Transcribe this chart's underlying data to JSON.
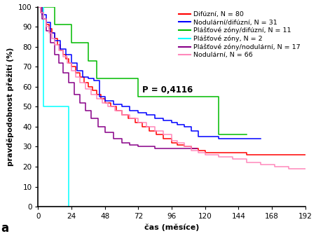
{
  "series": [
    {
      "label": "Difúzní, N = 80",
      "color": "#ff0000",
      "x": [
        0,
        2,
        4,
        6,
        8,
        10,
        12,
        14,
        16,
        18,
        20,
        22,
        24,
        27,
        30,
        33,
        36,
        39,
        42,
        45,
        48,
        52,
        56,
        60,
        65,
        70,
        75,
        80,
        85,
        90,
        96,
        100,
        105,
        110,
        115,
        120,
        125,
        130,
        140,
        150,
        160,
        170,
        180,
        192
      ],
      "y": [
        100,
        97,
        94,
        91,
        89,
        87,
        84,
        81,
        78,
        76,
        74,
        72,
        70,
        67,
        65,
        62,
        60,
        58,
        56,
        54,
        52,
        50,
        48,
        46,
        44,
        42,
        40,
        38,
        36,
        34,
        32,
        31,
        30,
        29,
        28,
        27,
        27,
        27,
        27,
        26,
        26,
        26,
        26,
        26
      ]
    },
    {
      "label": "Nodulární/difúzní, N = 31",
      "color": "#0000ff",
      "x": [
        0,
        3,
        6,
        9,
        12,
        16,
        20,
        24,
        28,
        32,
        36,
        40,
        44,
        48,
        54,
        60,
        66,
        72,
        78,
        84,
        90,
        96,
        100,
        105,
        110,
        115,
        120,
        130,
        145,
        160
      ],
      "y": [
        100,
        96,
        92,
        87,
        83,
        79,
        76,
        72,
        68,
        65,
        64,
        63,
        55,
        53,
        51,
        50,
        48,
        47,
        46,
        44,
        43,
        42,
        41,
        40,
        38,
        35,
        35,
        34,
        34,
        34
      ]
    },
    {
      "label": "Plášťové zóny/difúzní, N = 11",
      "color": "#00bb00",
      "x": [
        0,
        6,
        12,
        18,
        24,
        30,
        36,
        42,
        48,
        56,
        64,
        72,
        80,
        90,
        100,
        108,
        120,
        130,
        140,
        150
      ],
      "y": [
        100,
        100,
        91,
        91,
        82,
        82,
        73,
        64,
        64,
        64,
        64,
        55,
        55,
        55,
        55,
        55,
        55,
        36,
        36,
        36
      ]
    },
    {
      "label": "Plášťové zóny, N = 2",
      "color": "#00ffff",
      "x": [
        0,
        4,
        4,
        22,
        22
      ],
      "y": [
        100,
        100,
        50,
        50,
        0
      ]
    },
    {
      "label": "Plášťové zóny/nodulární, N = 17",
      "color": "#880088",
      "x": [
        0,
        3,
        6,
        9,
        12,
        15,
        18,
        22,
        26,
        30,
        34,
        38,
        43,
        48,
        54,
        60,
        66,
        72,
        78,
        84,
        90,
        96,
        100,
        108,
        114
      ],
      "y": [
        100,
        94,
        88,
        82,
        76,
        72,
        67,
        62,
        56,
        52,
        48,
        44,
        40,
        37,
        34,
        32,
        31,
        30,
        30,
        29,
        29,
        29,
        29,
        29,
        29
      ]
    },
    {
      "label": "Nodulární, N = 66",
      "color": "#ff88bb",
      "x": [
        0,
        2,
        4,
        6,
        8,
        10,
        12,
        15,
        18,
        21,
        24,
        27,
        30,
        34,
        38,
        42,
        46,
        50,
        55,
        60,
        66,
        72,
        78,
        84,
        90,
        96,
        100,
        105,
        110,
        115,
        120,
        130,
        140,
        150,
        160,
        170,
        180,
        192
      ],
      "y": [
        100,
        97,
        94,
        90,
        87,
        84,
        81,
        78,
        75,
        72,
        68,
        65,
        62,
        59,
        56,
        54,
        52,
        50,
        48,
        46,
        44,
        42,
        40,
        38,
        36,
        33,
        32,
        30,
        28,
        27,
        26,
        25,
        24,
        22,
        21,
        20,
        19,
        19
      ]
    }
  ],
  "xlabel": "čas (měsíce)",
  "ylabel": "pravděpodobnost přežití (%)",
  "xlim": [
    0,
    192
  ],
  "ylim": [
    0,
    100
  ],
  "xticks": [
    0,
    24,
    48,
    72,
    96,
    120,
    144,
    168,
    192
  ],
  "yticks": [
    0,
    10,
    20,
    30,
    40,
    50,
    60,
    70,
    80,
    90,
    100
  ],
  "pvalue_text": "P = 0,4116",
  "pvalue_x": 75,
  "pvalue_y": 57,
  "label_a": "a",
  "background_color": "#ffffff",
  "legend_fontsize": 6.8,
  "axis_label_fontsize": 8.0,
  "tick_fontsize": 7.5
}
